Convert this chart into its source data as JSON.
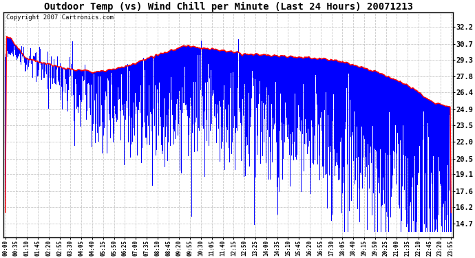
{
  "title": "Outdoor Temp (vs) Wind Chill per Minute (Last 24 Hours) 20071213",
  "copyright_text": "Copyright 2007 Cartronics.com",
  "yticks": [
    14.7,
    16.2,
    17.6,
    19.1,
    20.5,
    22.0,
    23.5,
    24.9,
    26.4,
    27.8,
    29.3,
    30.7,
    32.2
  ],
  "ymin": 13.5,
  "ymax": 33.5,
  "xtick_labels": [
    "00:00",
    "00:35",
    "01:10",
    "01:45",
    "02:20",
    "02:55",
    "03:30",
    "04:05",
    "04:40",
    "05:15",
    "05:50",
    "06:25",
    "07:00",
    "07:35",
    "08:10",
    "08:45",
    "09:20",
    "09:55",
    "10:30",
    "11:05",
    "11:40",
    "12:15",
    "12:50",
    "13:25",
    "14:00",
    "14:35",
    "15:10",
    "15:45",
    "16:20",
    "16:55",
    "17:30",
    "18:05",
    "18:40",
    "19:15",
    "19:50",
    "20:25",
    "21:00",
    "21:35",
    "22:10",
    "22:45",
    "23:20",
    "23:55"
  ],
  "background_color": "#ffffff",
  "plot_bg_color": "#ffffff",
  "bar_color": "#0000ff",
  "line_color": "#ff0000",
  "grid_color": "#bbbbbb",
  "title_fontsize": 10,
  "copyright_fontsize": 6.5
}
